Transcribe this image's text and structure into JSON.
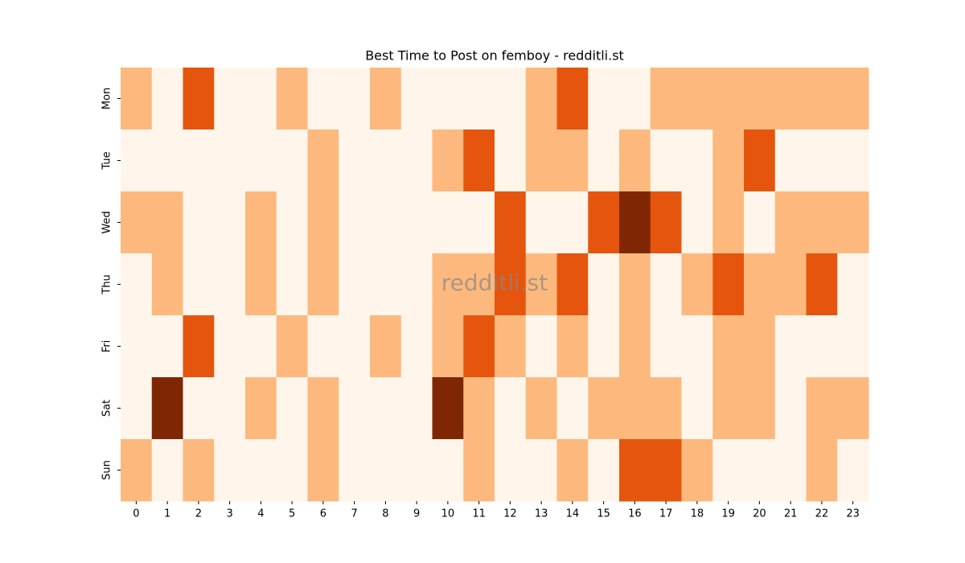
{
  "chart_data": {
    "type": "heatmap",
    "title": "Best Time to Post on femboy - redditli.st",
    "watermark": "redditli.st",
    "x": [
      0,
      1,
      2,
      3,
      4,
      5,
      6,
      7,
      8,
      9,
      10,
      11,
      12,
      13,
      14,
      15,
      16,
      17,
      18,
      19,
      20,
      21,
      22,
      23
    ],
    "y": [
      "Mon",
      "Tue",
      "Wed",
      "Thu",
      "Fri",
      "Sat",
      "Sun"
    ],
    "colors": [
      "#fff5eb",
      "#fdb97d",
      "#e6550d",
      "#7f2704"
    ],
    "values": [
      [
        1,
        0,
        2,
        0,
        0,
        1,
        0,
        0,
        1,
        0,
        0,
        0,
        0,
        1,
        2,
        0,
        0,
        1,
        1,
        1,
        1,
        1,
        1,
        1
      ],
      [
        0,
        0,
        0,
        0,
        0,
        0,
        1,
        0,
        0,
        0,
        1,
        2,
        0,
        1,
        1,
        0,
        1,
        0,
        0,
        1,
        2,
        0,
        0,
        0
      ],
      [
        1,
        1,
        0,
        0,
        1,
        0,
        1,
        0,
        0,
        0,
        0,
        0,
        2,
        0,
        0,
        2,
        3,
        2,
        0,
        1,
        0,
        1,
        1,
        1
      ],
      [
        0,
        1,
        0,
        0,
        1,
        0,
        1,
        0,
        0,
        0,
        1,
        1,
        2,
        1,
        2,
        0,
        1,
        0,
        1,
        2,
        1,
        1,
        2,
        0
      ],
      [
        0,
        0,
        2,
        0,
        0,
        1,
        0,
        0,
        1,
        0,
        1,
        2,
        1,
        0,
        1,
        0,
        1,
        0,
        0,
        1,
        1,
        0,
        0,
        0
      ],
      [
        0,
        3,
        0,
        0,
        1,
        0,
        1,
        0,
        0,
        0,
        3,
        1,
        0,
        1,
        0,
        1,
        1,
        1,
        0,
        1,
        1,
        0,
        1,
        1
      ],
      [
        1,
        0,
        1,
        0,
        0,
        0,
        1,
        0,
        0,
        0,
        0,
        1,
        0,
        0,
        1,
        0,
        2,
        2,
        1,
        0,
        0,
        0,
        1,
        0
      ]
    ]
  }
}
